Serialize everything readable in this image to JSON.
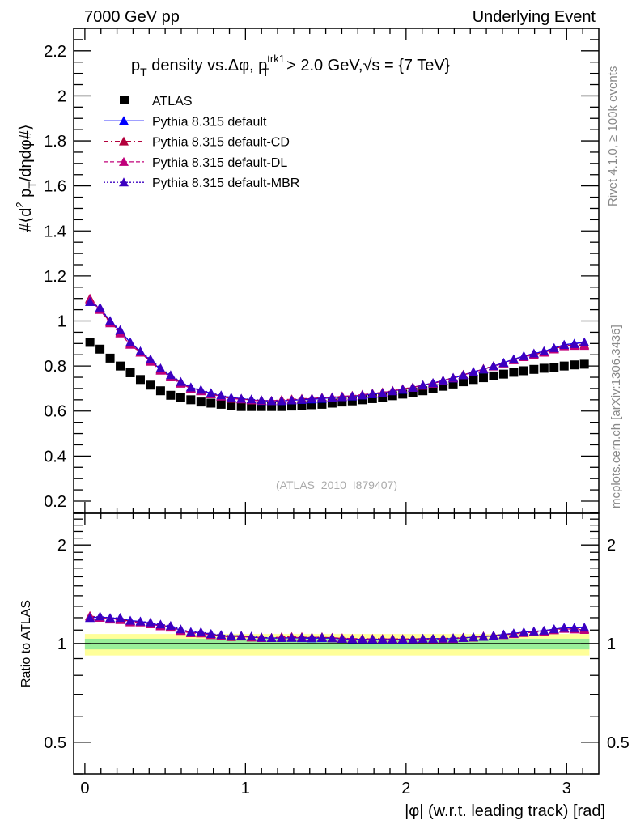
{
  "header": {
    "left": "7000 GeV pp",
    "right": "Underlying Event"
  },
  "side_labels": {
    "rivet": "Rivet 4.1.0, ≥ 100k events",
    "mcplots": "mcplots.cern.ch [arXiv:1306.3436]"
  },
  "watermark": "(ATLAS_2010_I879407)",
  "chart_data": [
    {
      "type": "scatter",
      "title": "p_T density vs.Δφ, p_T^trk1 > 2.0 GeV, √s = {7 TeV}",
      "title_parts": {
        "p": "p",
        "T": "T",
        "mid": " density vs.Δφ, p",
        "sup": "trk1",
        "end": " > 2.0 GeV,",
        "sqrt": "√s",
        "tail": " = {7 TeV}"
      },
      "ylabel": "#⟨d² p_T/dηdφ#⟩",
      "ylabel_parts": {
        "a": "#⟨d",
        "sup": "2",
        "b": " p",
        "sub": "T",
        "c": "/dηdφ#⟩"
      },
      "xlabel": "|φ| (w.r.t. leading track) [rad]",
      "xlim": [
        -0.07,
        3.2
      ],
      "ylim": [
        0.146,
        2.3
      ],
      "yticks": [
        "0.2",
        "0.4",
        "0.6",
        "0.8",
        "1",
        "1.2",
        "1.4",
        "1.6",
        "1.8",
        "2",
        "2.2"
      ],
      "xticks": [
        "0",
        "1",
        "2",
        "3"
      ],
      "legend_position": "top-left",
      "x_bins": 50,
      "x_range": [
        0,
        3.14159
      ],
      "series": [
        {
          "name": "ATLAS",
          "color": "#000000",
          "marker": "square",
          "line": "none",
          "values": [
            0.905,
            0.875,
            0.835,
            0.8,
            0.77,
            0.74,
            0.715,
            0.69,
            0.67,
            0.66,
            0.65,
            0.64,
            0.635,
            0.63,
            0.625,
            0.62,
            0.62,
            0.62,
            0.62,
            0.62,
            0.622,
            0.625,
            0.628,
            0.63,
            0.635,
            0.64,
            0.645,
            0.65,
            0.655,
            0.66,
            0.668,
            0.675,
            0.683,
            0.69,
            0.7,
            0.71,
            0.72,
            0.73,
            0.74,
            0.748,
            0.756,
            0.764,
            0.772,
            0.779,
            0.785,
            0.79,
            0.795,
            0.8,
            0.805,
            0.808
          ]
        },
        {
          "name": "Pythia 8.315 default",
          "color": "#0000ff",
          "marker": "triangle",
          "line": "solid",
          "values": [
            1.085,
            1.055,
            1.0,
            0.955,
            0.905,
            0.865,
            0.825,
            0.785,
            0.755,
            0.725,
            0.705,
            0.69,
            0.68,
            0.665,
            0.66,
            0.655,
            0.65,
            0.645,
            0.645,
            0.645,
            0.648,
            0.65,
            0.652,
            0.655,
            0.66,
            0.662,
            0.665,
            0.67,
            0.675,
            0.68,
            0.69,
            0.695,
            0.705,
            0.715,
            0.725,
            0.735,
            0.745,
            0.76,
            0.775,
            0.785,
            0.8,
            0.815,
            0.83,
            0.845,
            0.855,
            0.865,
            0.88,
            0.895,
            0.9,
            0.905
          ]
        },
        {
          "name": "Pythia 8.315 default-CD",
          "color": "#b3003c",
          "marker": "triangle",
          "line": "dashdot",
          "values": [
            1.1,
            1.05,
            0.995,
            0.95,
            0.9,
            0.86,
            0.82,
            0.785,
            0.755,
            0.725,
            0.7,
            0.69,
            0.675,
            0.665,
            0.655,
            0.655,
            0.648,
            0.648,
            0.645,
            0.65,
            0.652,
            0.655,
            0.655,
            0.66,
            0.66,
            0.665,
            0.668,
            0.672,
            0.678,
            0.683,
            0.69,
            0.698,
            0.706,
            0.714,
            0.724,
            0.736,
            0.748,
            0.762,
            0.772,
            0.788,
            0.8,
            0.812,
            0.828,
            0.842,
            0.85,
            0.862,
            0.876,
            0.89,
            0.893,
            0.895
          ]
        },
        {
          "name": "Pythia 8.315 default-DL",
          "color": "#c0007a",
          "marker": "triangle",
          "line": "dashed",
          "values": [
            1.095,
            1.05,
            0.99,
            0.945,
            0.895,
            0.86,
            0.82,
            0.78,
            0.75,
            0.722,
            0.7,
            0.688,
            0.675,
            0.665,
            0.656,
            0.652,
            0.648,
            0.646,
            0.646,
            0.648,
            0.65,
            0.652,
            0.656,
            0.658,
            0.662,
            0.665,
            0.668,
            0.673,
            0.677,
            0.682,
            0.69,
            0.697,
            0.704,
            0.713,
            0.722,
            0.734,
            0.746,
            0.76,
            0.773,
            0.786,
            0.798,
            0.812,
            0.826,
            0.84,
            0.85,
            0.86,
            0.874,
            0.888,
            0.89,
            0.89
          ]
        },
        {
          "name": "Pythia 8.315 default-MBR",
          "color": "#3c00c0",
          "marker": "triangle",
          "line": "dotted",
          "values": [
            1.085,
            1.06,
            1.0,
            0.96,
            0.905,
            0.865,
            0.83,
            0.79,
            0.76,
            0.73,
            0.705,
            0.695,
            0.68,
            0.67,
            0.66,
            0.655,
            0.652,
            0.648,
            0.645,
            0.645,
            0.648,
            0.652,
            0.655,
            0.658,
            0.66,
            0.662,
            0.666,
            0.67,
            0.676,
            0.68,
            0.688,
            0.696,
            0.704,
            0.714,
            0.724,
            0.736,
            0.748,
            0.76,
            0.774,
            0.786,
            0.8,
            0.814,
            0.83,
            0.844,
            0.856,
            0.866,
            0.88,
            0.894,
            0.898,
            0.905
          ]
        }
      ]
    },
    {
      "type": "scatter",
      "ylabel": "Ratio to ATLAS",
      "yscale": "log",
      "ylim": [
        0.4,
        2.5
      ],
      "yticks": [
        "0.5",
        "1",
        "2"
      ],
      "reference": "ATLAS",
      "bands": [
        {
          "name": "total-uncertainty",
          "color": "#ffff99",
          "range": [
            0.92,
            1.07
          ]
        },
        {
          "name": "stat-uncertainty",
          "color": "#99ee99",
          "range": [
            0.96,
            1.035
          ]
        }
      ]
    }
  ]
}
